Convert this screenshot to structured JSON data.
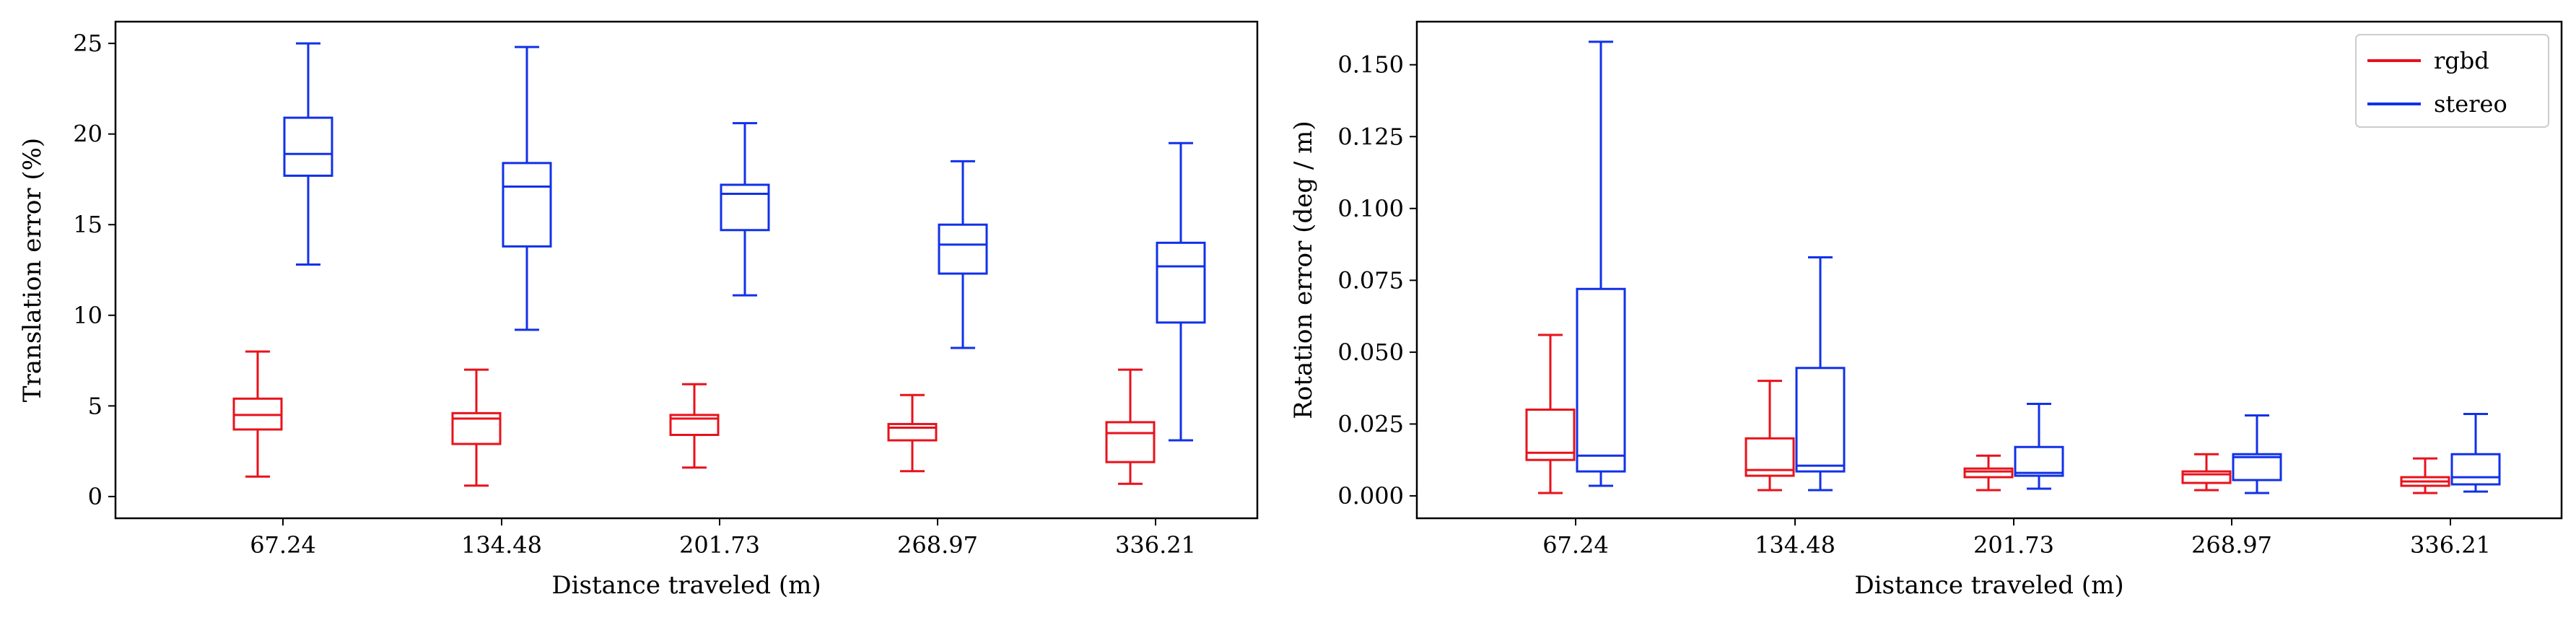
{
  "colors": {
    "rgbd": "#e8121b",
    "stereo": "#1131e8"
  },
  "legend": [
    "rgbd",
    "stereo"
  ],
  "chart_data": [
    {
      "type": "box",
      "xlabel": "Distance traveled (m)",
      "ylabel": "Translation error (%)",
      "categories": [
        "67.24",
        "134.48",
        "201.73",
        "268.97",
        "336.21"
      ],
      "yticks": [
        "0",
        "5",
        "10",
        "15",
        "20",
        "25"
      ],
      "ylim": [
        -1.2,
        26.2
      ],
      "series": [
        {
          "name": "rgbd",
          "boxes": [
            {
              "whislo": 1.1,
              "q1": 3.7,
              "med": 4.5,
              "q3": 5.4,
              "whishi": 8.0
            },
            {
              "whislo": 0.6,
              "q1": 2.9,
              "med": 4.3,
              "q3": 4.6,
              "whishi": 7.0
            },
            {
              "whislo": 1.6,
              "q1": 3.4,
              "med": 4.3,
              "q3": 4.5,
              "whishi": 6.2
            },
            {
              "whislo": 1.4,
              "q1": 3.1,
              "med": 3.8,
              "q3": 4.0,
              "whishi": 5.6
            },
            {
              "whislo": 0.7,
              "q1": 1.9,
              "med": 3.5,
              "q3": 4.1,
              "whishi": 7.0
            }
          ]
        },
        {
          "name": "stereo",
          "boxes": [
            {
              "whislo": 12.8,
              "q1": 17.7,
              "med": 18.9,
              "q3": 20.9,
              "whishi": 25.0
            },
            {
              "whislo": 9.2,
              "q1": 13.8,
              "med": 17.1,
              "q3": 18.4,
              "whishi": 24.8
            },
            {
              "whislo": 11.1,
              "q1": 14.7,
              "med": 16.7,
              "q3": 17.2,
              "whishi": 20.6
            },
            {
              "whislo": 8.2,
              "q1": 12.3,
              "med": 13.9,
              "q3": 15.0,
              "whishi": 18.5
            },
            {
              "whislo": 3.1,
              "q1": 9.6,
              "med": 12.7,
              "q3": 14.0,
              "whishi": 19.5
            }
          ]
        }
      ]
    },
    {
      "type": "box",
      "xlabel": "Distance traveled (m)",
      "ylabel": "Rotation error (deg / m)",
      "categories": [
        "67.24",
        "134.48",
        "201.73",
        "268.97",
        "336.21"
      ],
      "yticks": [
        "0.000",
        "0.025",
        "0.050",
        "0.075",
        "0.100",
        "0.125",
        "0.150"
      ],
      "ylim": [
        -0.0078,
        0.165
      ],
      "legend_position": "top-right",
      "series": [
        {
          "name": "rgbd",
          "boxes": [
            {
              "whislo": 0.001,
              "q1": 0.0125,
              "med": 0.015,
              "q3": 0.03,
              "whishi": 0.056
            },
            {
              "whislo": 0.002,
              "q1": 0.007,
              "med": 0.009,
              "q3": 0.02,
              "whishi": 0.04
            },
            {
              "whislo": 0.002,
              "q1": 0.0065,
              "med": 0.0085,
              "q3": 0.0095,
              "whishi": 0.014
            },
            {
              "whislo": 0.002,
              "q1": 0.0045,
              "med": 0.0075,
              "q3": 0.0085,
              "whishi": 0.0145
            },
            {
              "whislo": 0.001,
              "q1": 0.0035,
              "med": 0.005,
              "q3": 0.0065,
              "whishi": 0.013
            }
          ]
        },
        {
          "name": "stereo",
          "boxes": [
            {
              "whislo": 0.0035,
              "q1": 0.0085,
              "med": 0.014,
              "q3": 0.072,
              "whishi": 0.158
            },
            {
              "whislo": 0.002,
              "q1": 0.0085,
              "med": 0.0105,
              "q3": 0.0445,
              "whishi": 0.083
            },
            {
              "whislo": 0.0025,
              "q1": 0.007,
              "med": 0.008,
              "q3": 0.017,
              "whishi": 0.032
            },
            {
              "whislo": 0.001,
              "q1": 0.0055,
              "med": 0.0135,
              "q3": 0.0145,
              "whishi": 0.028
            },
            {
              "whislo": 0.0015,
              "q1": 0.004,
              "med": 0.0065,
              "q3": 0.0145,
              "whishi": 0.0285
            }
          ]
        }
      ]
    }
  ]
}
